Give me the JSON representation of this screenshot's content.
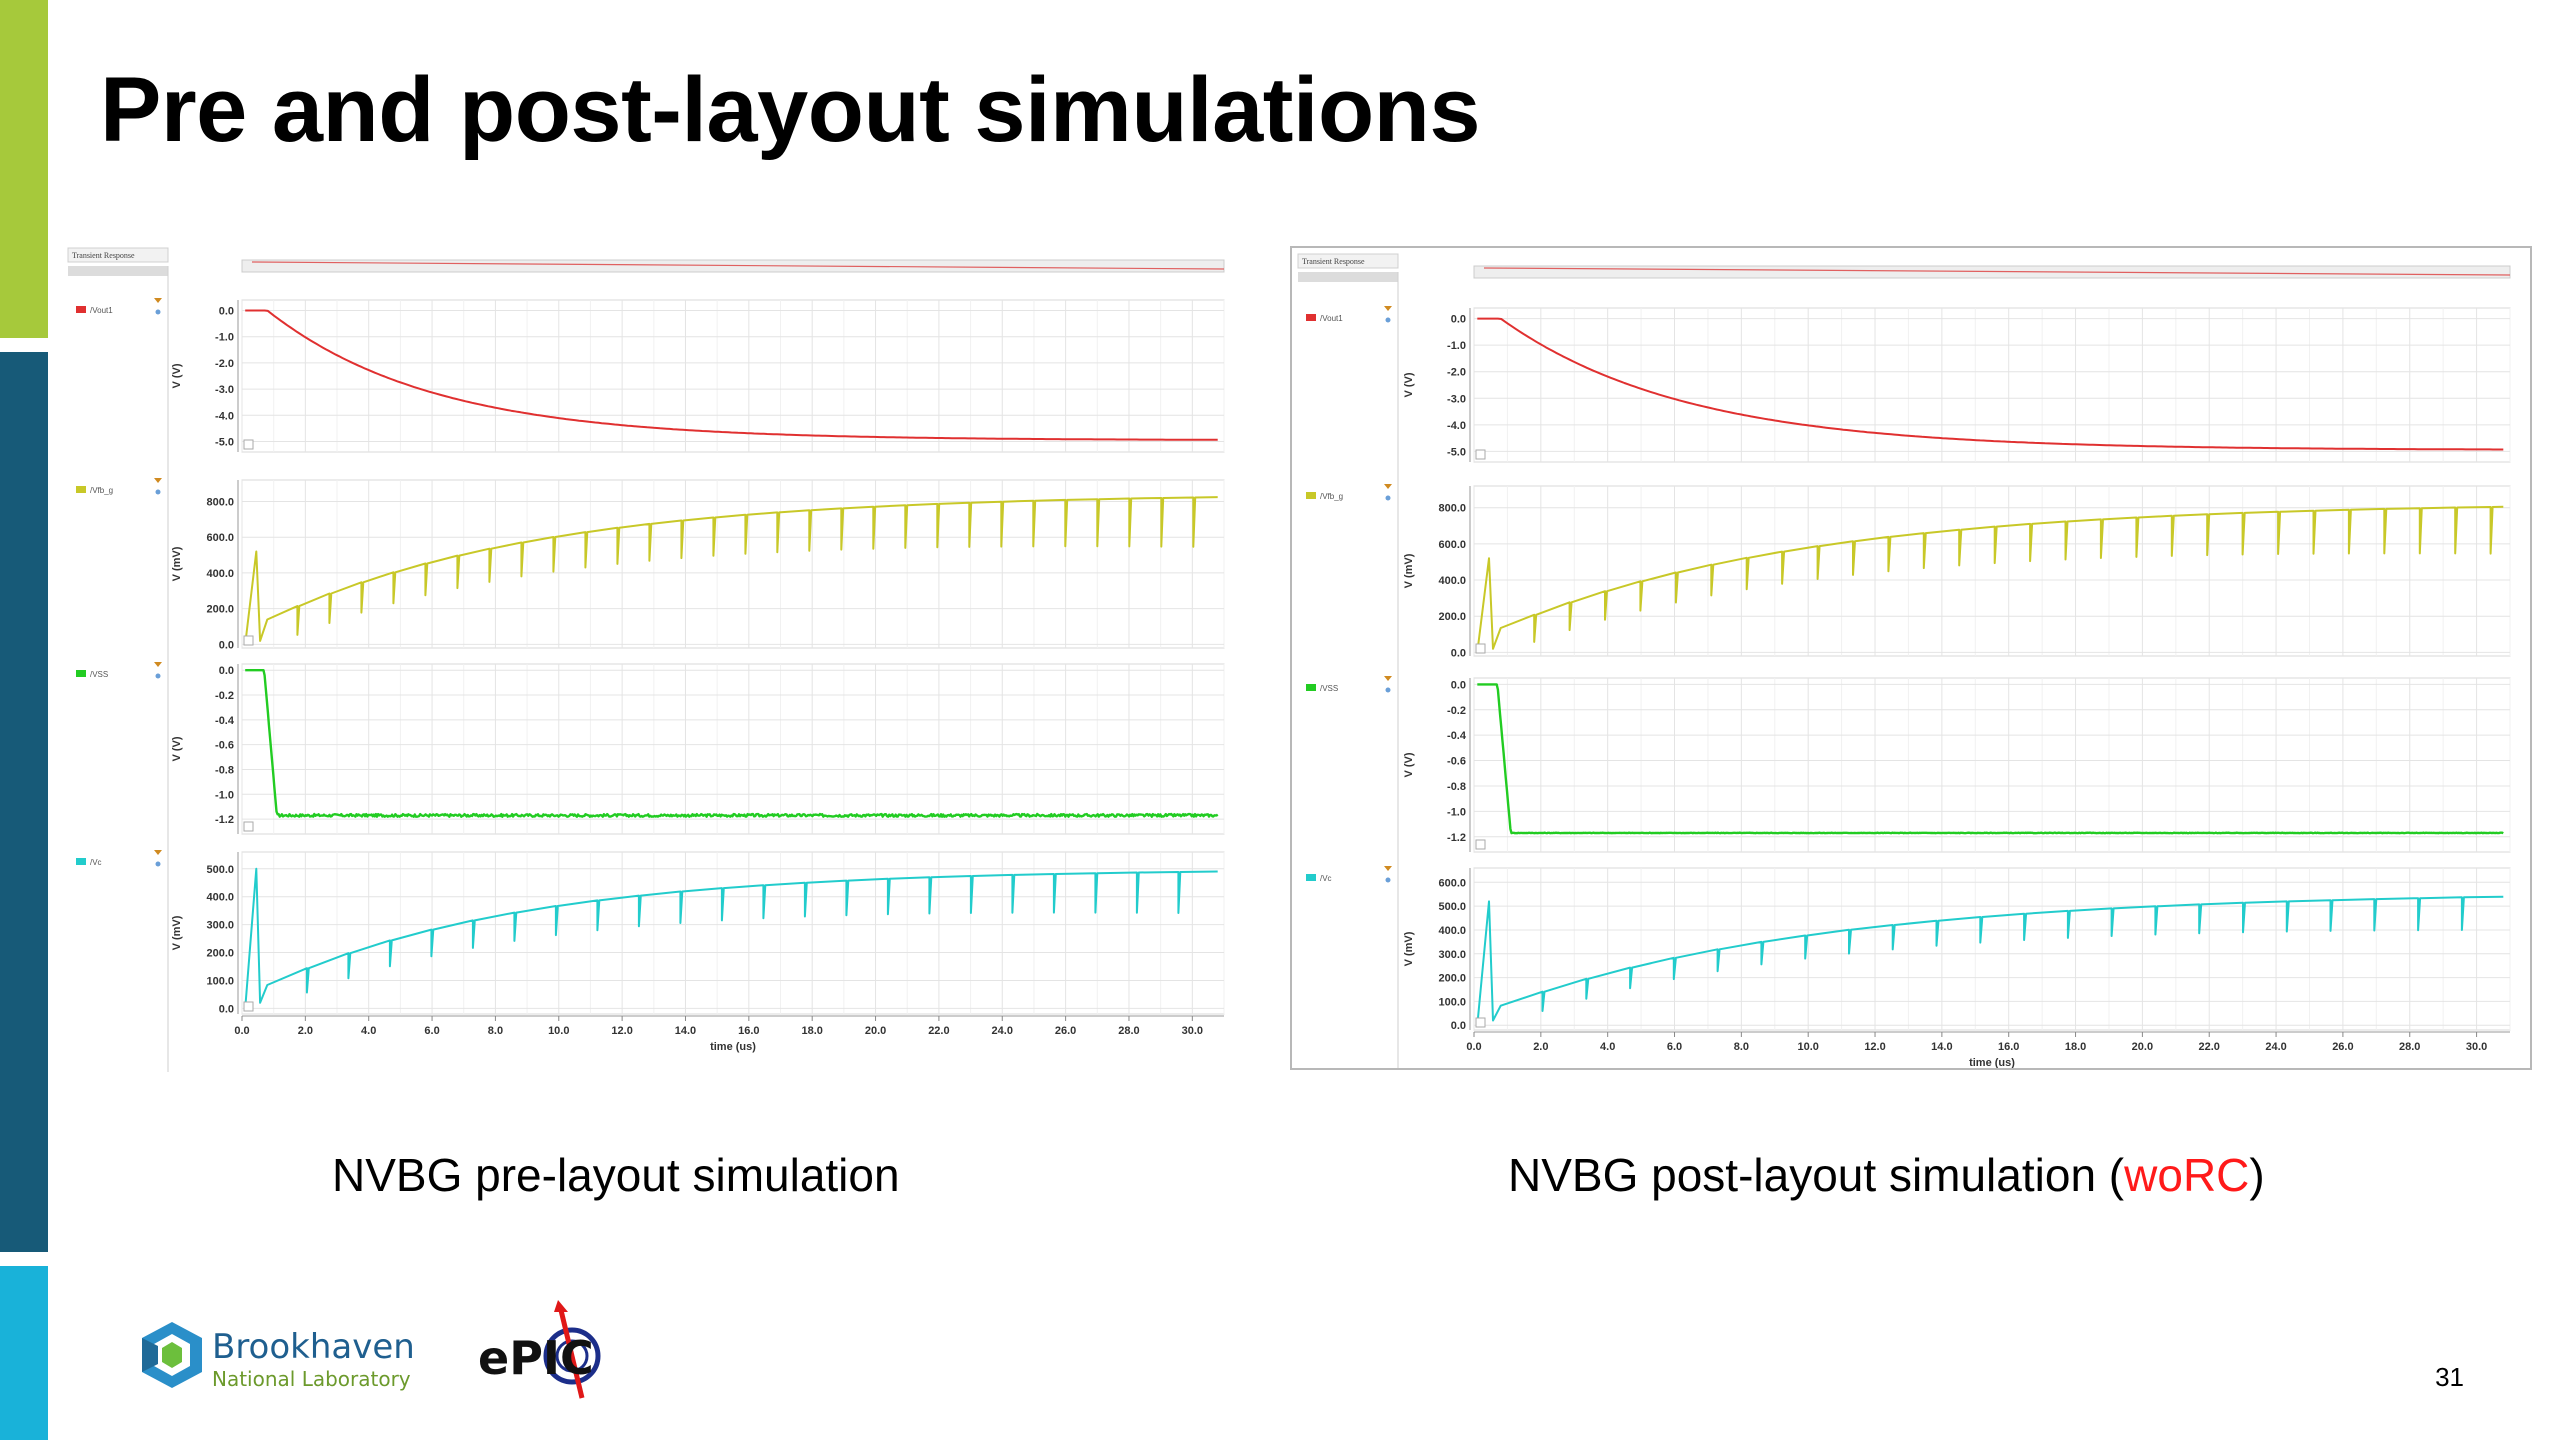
{
  "slide": {
    "title": "Pre and post-layout simulations",
    "page_number": "31",
    "accent_colors": {
      "top_bar": "#a6c93b",
      "mid_bar": "#175a78",
      "bottom_bar": "#19b2d9"
    }
  },
  "captions": {
    "pre": "NVBG pre-layout simulation",
    "post_prefix": "NVBG post-layout simulation (",
    "post_highlight": "woRC",
    "post_suffix": ")"
  },
  "logos": {
    "bnl_line1": "Brookhaven",
    "bnl_line2": "National Laboratory",
    "epic": "ePIC",
    "bnl_icon": "hexagon-logo-icon",
    "epic_icon": "epic-target-icon"
  },
  "chart_data": [
    {
      "type": "line",
      "title": "NVBG pre-layout simulation",
      "panel_header": "Transient Response",
      "xlabel": "time (us)",
      "xlim": [
        0,
        31
      ],
      "xticks": [
        "0.0",
        "2.0",
        "4.0",
        "6.0",
        "8.0",
        "10.0",
        "12.0",
        "14.0",
        "16.0",
        "18.0",
        "20.0",
        "22.0",
        "24.0",
        "26.0",
        "28.0",
        "30.0"
      ],
      "subplots": [
        {
          "signal": "/Vout1",
          "color": "#e03030",
          "ylabel": "V (V)",
          "ylim": [
            -5.4,
            0.4
          ],
          "yticks": [
            "0.0",
            "-1.0",
            "-2.0",
            "-3.0",
            "-4.0",
            "-5.0"
          ],
          "wave": {
            "kind": "decay",
            "t0": 0.8,
            "start": 0.0,
            "end": -4.95,
            "tau": 5.2,
            "noise": 0
          }
        },
        {
          "signal": "/Vfb_g",
          "color": "#c8c828",
          "ylabel": "V (mV)",
          "ylim": [
            -20,
            920
          ],
          "yticks": [
            "800.0",
            "600.0",
            "400.0",
            "200.0",
            "0.0"
          ],
          "wave": {
            "kind": "pulses",
            "base": 70,
            "final": 845,
            "tau": 8.5,
            "period": 0.95,
            "dip": 280,
            "spike_t": 0.45,
            "spike_v": 520
          }
        },
        {
          "signal": "/VSS",
          "color": "#22cc22",
          "ylabel": "V (V)",
          "ylim": [
            -1.32,
            0.05
          ],
          "yticks": [
            "0.0",
            "-0.2",
            "-0.4",
            "-0.6",
            "-0.8",
            "-1.0",
            "-1.2"
          ],
          "wave": {
            "kind": "step",
            "t0": 0.7,
            "t1": 1.1,
            "high": 0.0,
            "low": -1.17,
            "noise": 0.022
          }
        },
        {
          "signal": "/Vc",
          "color": "#22cccc",
          "ylabel": "V (mV)",
          "ylim": [
            -20,
            560
          ],
          "yticks": [
            "500.0",
            "400.0",
            "300.0",
            "200.0",
            "100.0",
            "0.0"
          ],
          "wave": {
            "kind": "pulses",
            "base": 40,
            "final": 500,
            "tau": 8.0,
            "period": 1.25,
            "dip": 150,
            "spike_t": 0.45,
            "spike_v": 500
          }
        }
      ]
    },
    {
      "type": "line",
      "title": "NVBG post-layout simulation (woRC)",
      "panel_header": "Transient Response",
      "xlabel": "time (us)",
      "xlim": [
        0,
        31
      ],
      "xticks": [
        "0.0",
        "2.0",
        "4.0",
        "6.0",
        "8.0",
        "10.0",
        "12.0",
        "14.0",
        "16.0",
        "18.0",
        "20.0",
        "22.0",
        "24.0",
        "26.0",
        "28.0",
        "30.0"
      ],
      "subplots": [
        {
          "signal": "/Vout1",
          "color": "#e03030",
          "ylabel": "V (V)",
          "ylim": [
            -5.4,
            0.4
          ],
          "yticks": [
            "0.0",
            "-1.0",
            "-2.0",
            "-3.0",
            "-4.0",
            "-5.0"
          ],
          "wave": {
            "kind": "decay",
            "t0": 0.8,
            "start": 0.0,
            "end": -4.95,
            "tau": 5.5,
            "noise": 0
          }
        },
        {
          "signal": "/Vfb_g",
          "color": "#c8c828",
          "ylabel": "V (mV)",
          "ylim": [
            -20,
            920
          ],
          "yticks": [
            "800.0",
            "600.0",
            "400.0",
            "200.0",
            "0.0"
          ],
          "wave": {
            "kind": "pulses",
            "base": 70,
            "final": 830,
            "tau": 9.0,
            "period": 1.0,
            "dip": 260,
            "spike_t": 0.45,
            "spike_v": 520
          }
        },
        {
          "signal": "/VSS",
          "color": "#22cc22",
          "ylabel": "V (V)",
          "ylim": [
            -1.32,
            0.05
          ],
          "yticks": [
            "0.0",
            "-0.2",
            "-0.4",
            "-0.6",
            "-0.8",
            "-1.0",
            "-1.2"
          ],
          "wave": {
            "kind": "step",
            "t0": 0.7,
            "t1": 1.1,
            "high": 0.0,
            "low": -1.17,
            "noise": 0.004
          }
        },
        {
          "signal": "/Vc",
          "color": "#22cccc",
          "ylabel": "V (mV)",
          "ylim": [
            -20,
            660
          ],
          "yticks": [
            "600.0",
            "500.0",
            "400.0",
            "300.0",
            "200.0",
            "100.0",
            "0.0"
          ],
          "wave": {
            "kind": "pulses",
            "base": 40,
            "final": 560,
            "tau": 9.5,
            "period": 1.25,
            "dip": 140,
            "spike_t": 0.45,
            "spike_v": 520
          }
        }
      ]
    }
  ]
}
